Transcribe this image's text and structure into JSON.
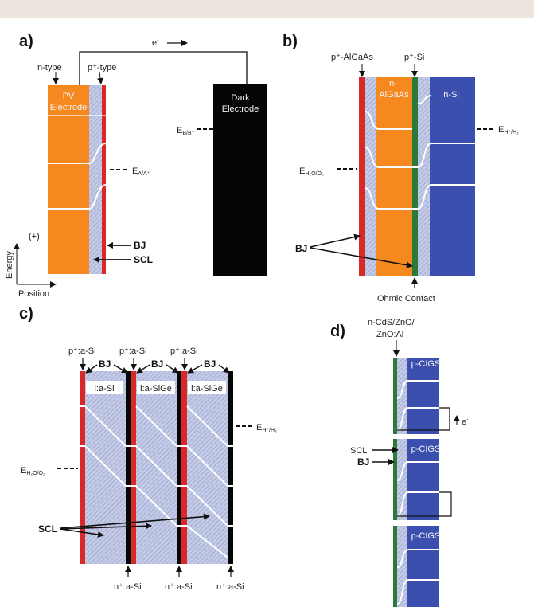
{
  "panels": {
    "a": {
      "letter": "a)",
      "electron": "e",
      "electron_sup": "-",
      "n_type": "n-type",
      "p_type": "p⁺-type",
      "pv_line1": "PV",
      "pv_line2": "Electrode",
      "dark_line1": "Dark",
      "dark_line2": "Electrode",
      "e_bb": "E",
      "e_bb_sub": "B/B⁻",
      "e_aa": "E",
      "e_aa_sub": "A/A⁺",
      "bj": "BJ",
      "scl": "SCL",
      "plus": "(+)",
      "energy": "Energy",
      "position": "Position"
    },
    "b": {
      "letter": "b)",
      "p_algaas": "p⁺-AlGaAs",
      "p_si": "p⁺-Si",
      "n_algaas_1": "n-",
      "n_algaas_2": "AlGaAs",
      "n_si": "n-Si",
      "e_h": "E",
      "e_h_sub": "H⁺/H₂",
      "e_h2o": "E",
      "e_h2o_sub": "H₂O/O₂",
      "bj": "BJ",
      "ohmic": "Ohmic Contact"
    },
    "c": {
      "letter": "c)",
      "top_labels": [
        "p⁺:a-Si",
        "p⁺:a-Si",
        "p⁺:a-Si"
      ],
      "bj_labels": [
        "BJ",
        "BJ",
        "BJ"
      ],
      "layers": [
        "i:a-Si",
        "i:a-SiGe",
        "i:a-SiGe"
      ],
      "e_h": "E",
      "e_h_sub": "H⁺/H₂",
      "e_h2o": "E",
      "e_h2o_sub": "H₂O/O₂",
      "scl": "SCL",
      "bottom_labels": [
        "n⁺:a-Si",
        "n⁺:a-Si",
        "n⁺:a-Si"
      ]
    },
    "d": {
      "letter": "d)",
      "top_1": "n-CdS/ZnO/",
      "top_2": "ZnO:Al",
      "cigs": [
        "p-CIGS",
        "p-CIGS",
        "p-CIGS"
      ],
      "electron": "e",
      "electron_sup": "-",
      "scl": "SCL",
      "bj": "BJ"
    }
  },
  "colors": {
    "orange": "#f5891f",
    "blue": "#3a4fae",
    "hatch": "#b8c0e0",
    "red": "#d82828",
    "green": "#2a7a3a",
    "black": "#050505",
    "header": "#ece6de"
  }
}
